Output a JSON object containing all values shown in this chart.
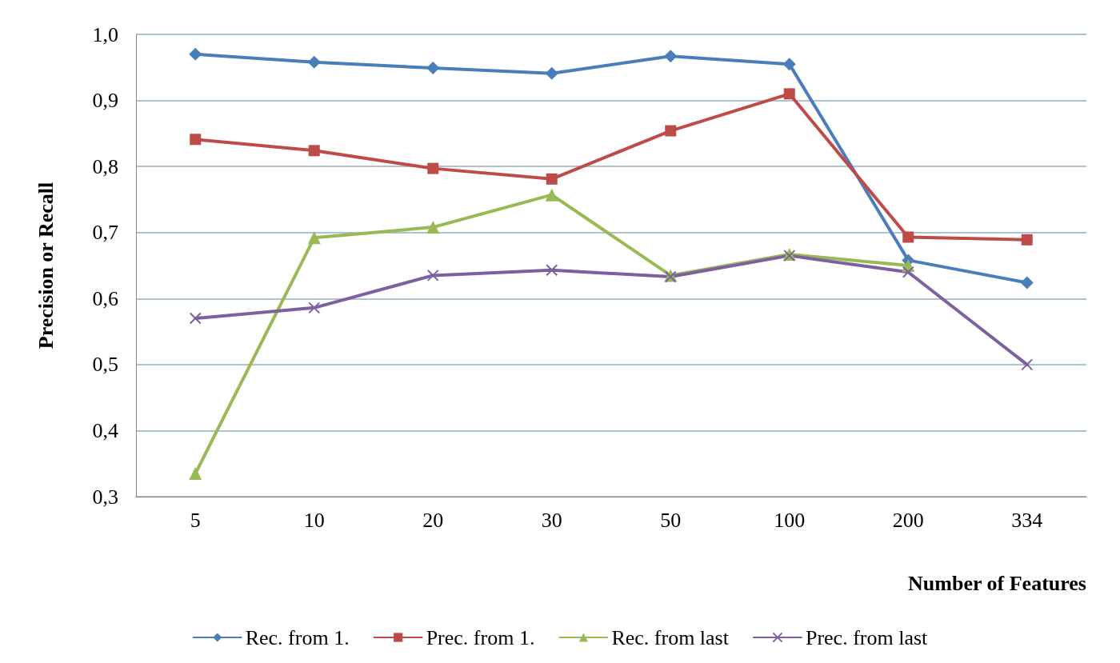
{
  "chart_data": {
    "type": "line",
    "xlabel": "Number of Features",
    "ylabel": "Precision or Recall",
    "categories": [
      "5",
      "10",
      "20",
      "30",
      "50",
      "100",
      "200",
      "334"
    ],
    "series": [
      {
        "name": "Rec. from 1.",
        "color": "#4a7ebb",
        "marker": "diamond",
        "values": [
          0.97,
          0.958,
          0.949,
          0.941,
          0.967,
          0.955,
          0.658,
          0.624
        ]
      },
      {
        "name": "Prec. from 1.",
        "color": "#be4b48",
        "marker": "square",
        "values": [
          0.841,
          0.824,
          0.797,
          0.781,
          0.854,
          0.91,
          0.693,
          0.689
        ]
      },
      {
        "name": "Rec. from last",
        "color": "#98b954",
        "marker": "triangle",
        "values": [
          0.335,
          0.692,
          0.708,
          0.757,
          0.635,
          0.667,
          0.65,
          null
        ]
      },
      {
        "name": "Prec. from last",
        "color": "#7d60a0",
        "marker": "cross",
        "values": [
          0.57,
          0.586,
          0.635,
          0.643,
          0.633,
          0.665,
          0.64,
          0.5
        ]
      }
    ],
    "ylim": [
      0.3,
      1.0
    ],
    "yticks": [
      {
        "value": 0.3,
        "label": "0,3"
      },
      {
        "value": 0.4,
        "label": "0,4"
      },
      {
        "value": 0.5,
        "label": "0,5"
      },
      {
        "value": 0.6,
        "label": "0,6"
      },
      {
        "value": 0.7,
        "label": "0,7"
      },
      {
        "value": 0.8,
        "label": "0,8"
      },
      {
        "value": 0.9,
        "label": "0,9"
      },
      {
        "value": 1.0,
        "label": "1,0"
      }
    ],
    "grid": "y",
    "legend": "bottom",
    "line_style": "solid"
  }
}
